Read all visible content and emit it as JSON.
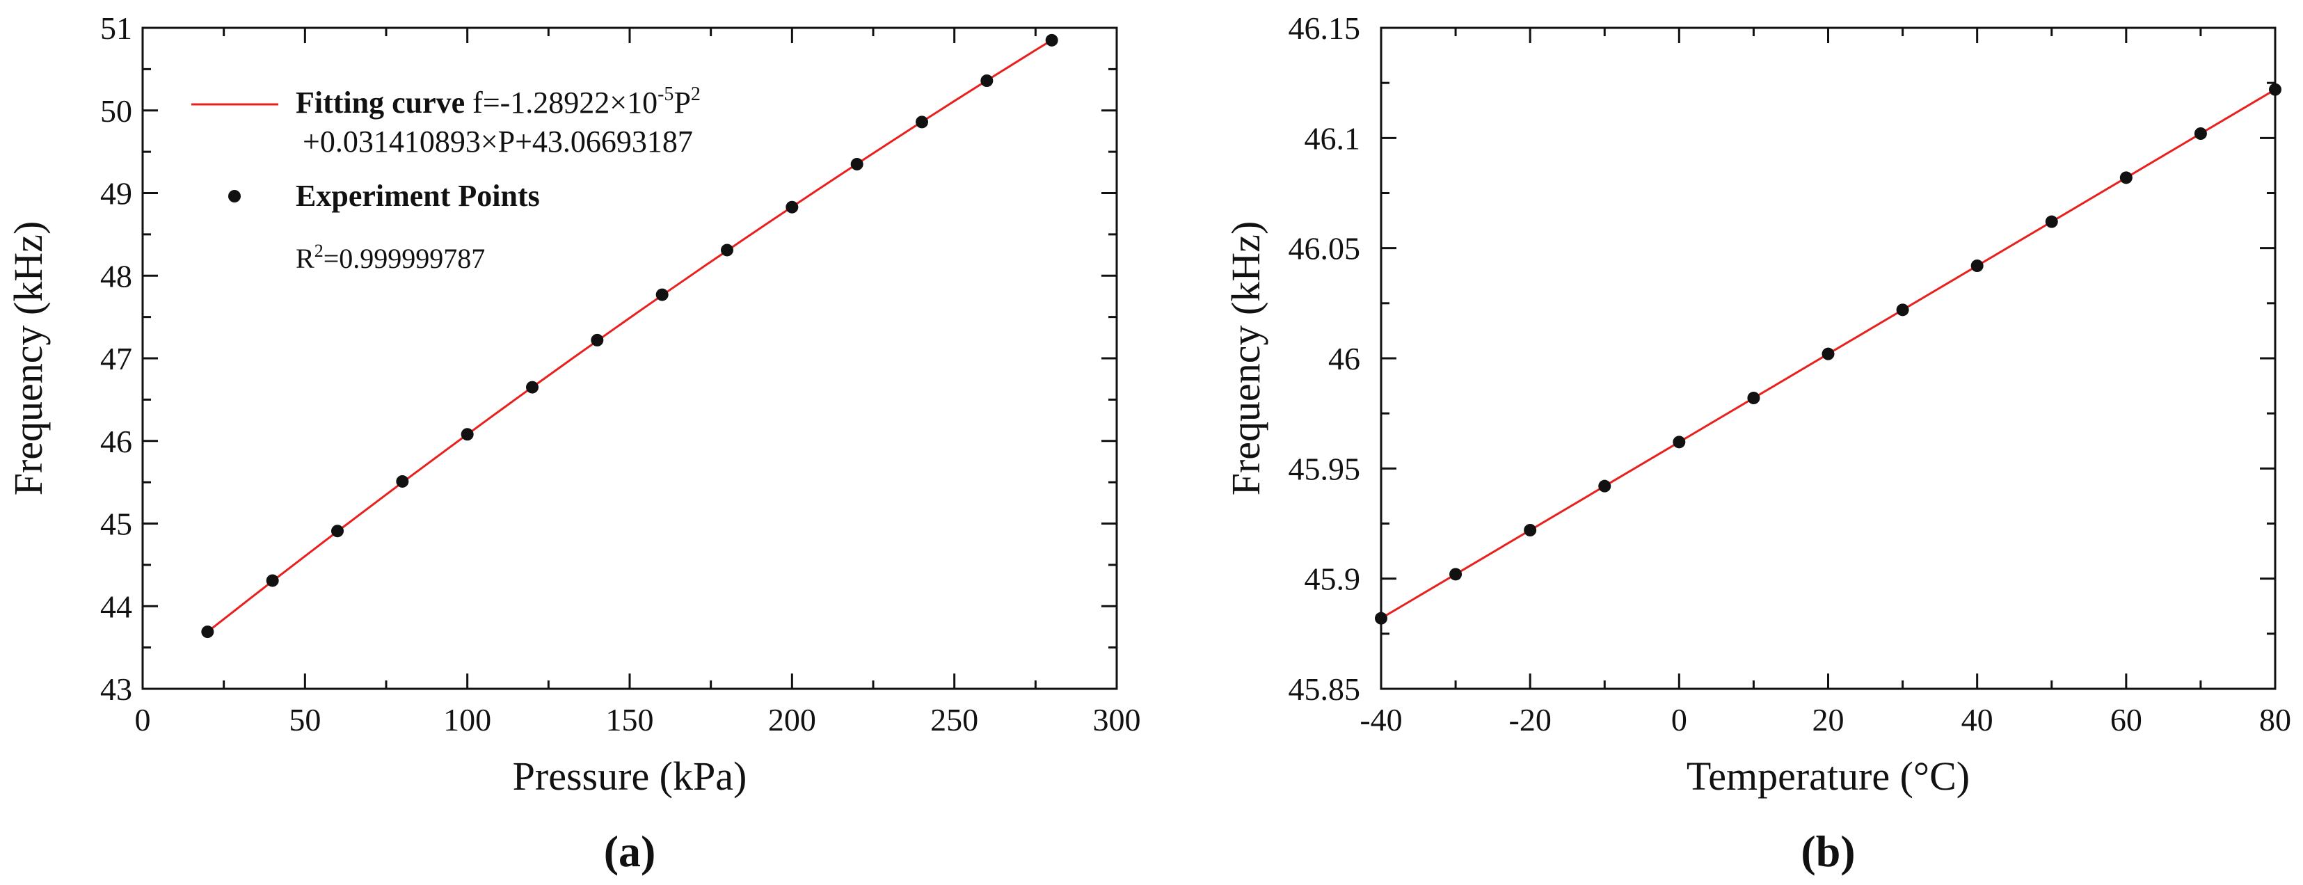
{
  "colors": {
    "fit": "#e8211e",
    "points": "#111111",
    "axes": "#111111"
  },
  "chart_data": [
    {
      "type": "scatter",
      "panel_label": "(a)",
      "xlabel": "Pressure (kPa)",
      "ylabel": "Frequency (kHz)",
      "xlim": [
        0,
        300
      ],
      "ylim": [
        43,
        51
      ],
      "xticks": [
        "0",
        "50",
        "100",
        "150",
        "200",
        "250",
        "300"
      ],
      "yticks": [
        "43",
        "44",
        "45",
        "46",
        "47",
        "48",
        "49",
        "50",
        "51"
      ],
      "legend": {
        "position": "top-left",
        "fit_label_bold": "Fitting curve",
        "fit_eq_line1": {
          "pre": "f=-1.28922×10",
          "sup": "-5",
          "mid": "P",
          "sup2": "2",
          "post": ""
        },
        "fit_eq_line2": "+0.031410893×P+43.06693187",
        "points_label": "Experiment Points",
        "r2": {
          "pre": "R",
          "sup": "2",
          "post": "=0.999999787"
        }
      },
      "series": [
        {
          "kind": "line",
          "fit": {
            "a": -1.28922e-05,
            "b": 0.031410893,
            "c": 43.06693187
          },
          "x_range": [
            20,
            280
          ]
        },
        {
          "kind": "points",
          "x": [
            20,
            40,
            60,
            80,
            100,
            120,
            140,
            160,
            180,
            200,
            220,
            240,
            260,
            280
          ],
          "y": [
            43.69,
            44.31,
            44.91,
            45.51,
            46.08,
            46.65,
            47.22,
            47.77,
            48.31,
            48.83,
            49.35,
            49.86,
            50.36,
            50.85
          ]
        }
      ]
    },
    {
      "type": "scatter",
      "panel_label": "(b)",
      "xlabel": "Temperature (°C)",
      "ylabel": "Frequency (kHz)",
      "xlim": [
        -40,
        80
      ],
      "ylim": [
        45.85,
        46.15
      ],
      "xticks": [
        "-40",
        "-20",
        "0",
        "20",
        "40",
        "60",
        "80"
      ],
      "yticks": [
        "45.85",
        "45.9",
        "45.95",
        "46",
        "46.05",
        "46.1",
        "46.15"
      ],
      "series": [
        {
          "kind": "line",
          "line": {
            "x": [
              -40,
              80
            ],
            "y": [
              45.882,
              46.122
            ]
          }
        },
        {
          "kind": "points",
          "x": [
            -40,
            -30,
            -20,
            -10,
            0,
            10,
            20,
            30,
            40,
            50,
            60,
            70,
            80
          ],
          "y": [
            45.882,
            45.902,
            45.922,
            45.942,
            45.962,
            45.982,
            46.002,
            46.022,
            46.042,
            46.062,
            46.082,
            46.102,
            46.122
          ]
        }
      ]
    }
  ]
}
